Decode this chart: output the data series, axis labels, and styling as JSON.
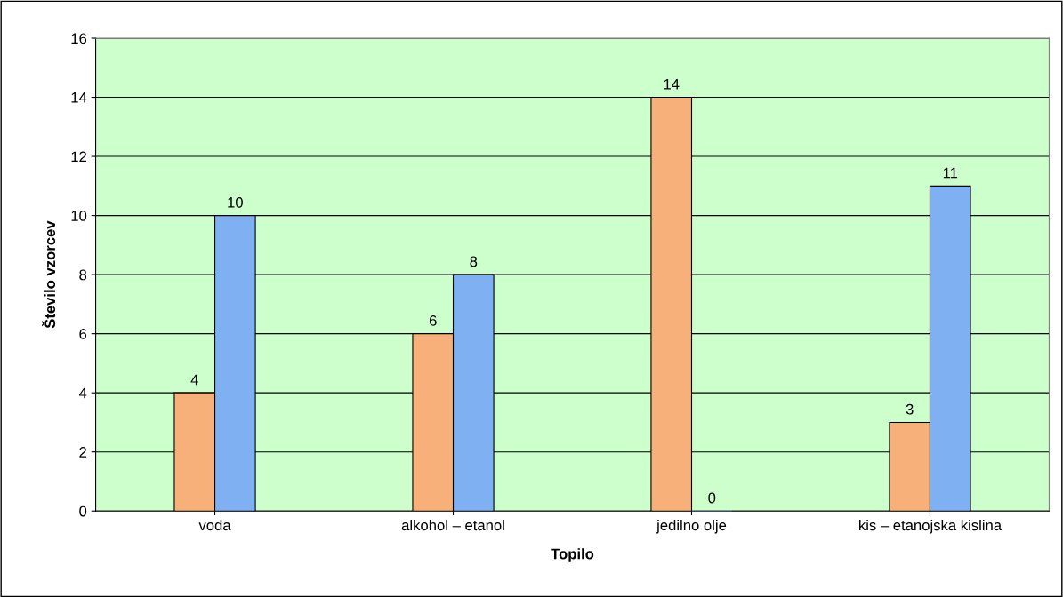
{
  "chart_data": {
    "type": "bar",
    "xlabel": "Topilo",
    "ylabel": "Število vzorcev",
    "categories": [
      "voda",
      "alkohol – etanol",
      "jedilno olje",
      "kis – etanojska kislina"
    ],
    "series": [
      {
        "color": "#f8b07a",
        "values": [
          4,
          6,
          14,
          3
        ]
      },
      {
        "color": "#7fb0f2",
        "values": [
          10,
          8,
          0,
          11
        ]
      }
    ],
    "ylim": [
      0,
      16
    ],
    "yticks": [
      0,
      2,
      4,
      6,
      8,
      10,
      12,
      14,
      16
    ],
    "grid": "y",
    "data_labels": true,
    "legend": false
  }
}
